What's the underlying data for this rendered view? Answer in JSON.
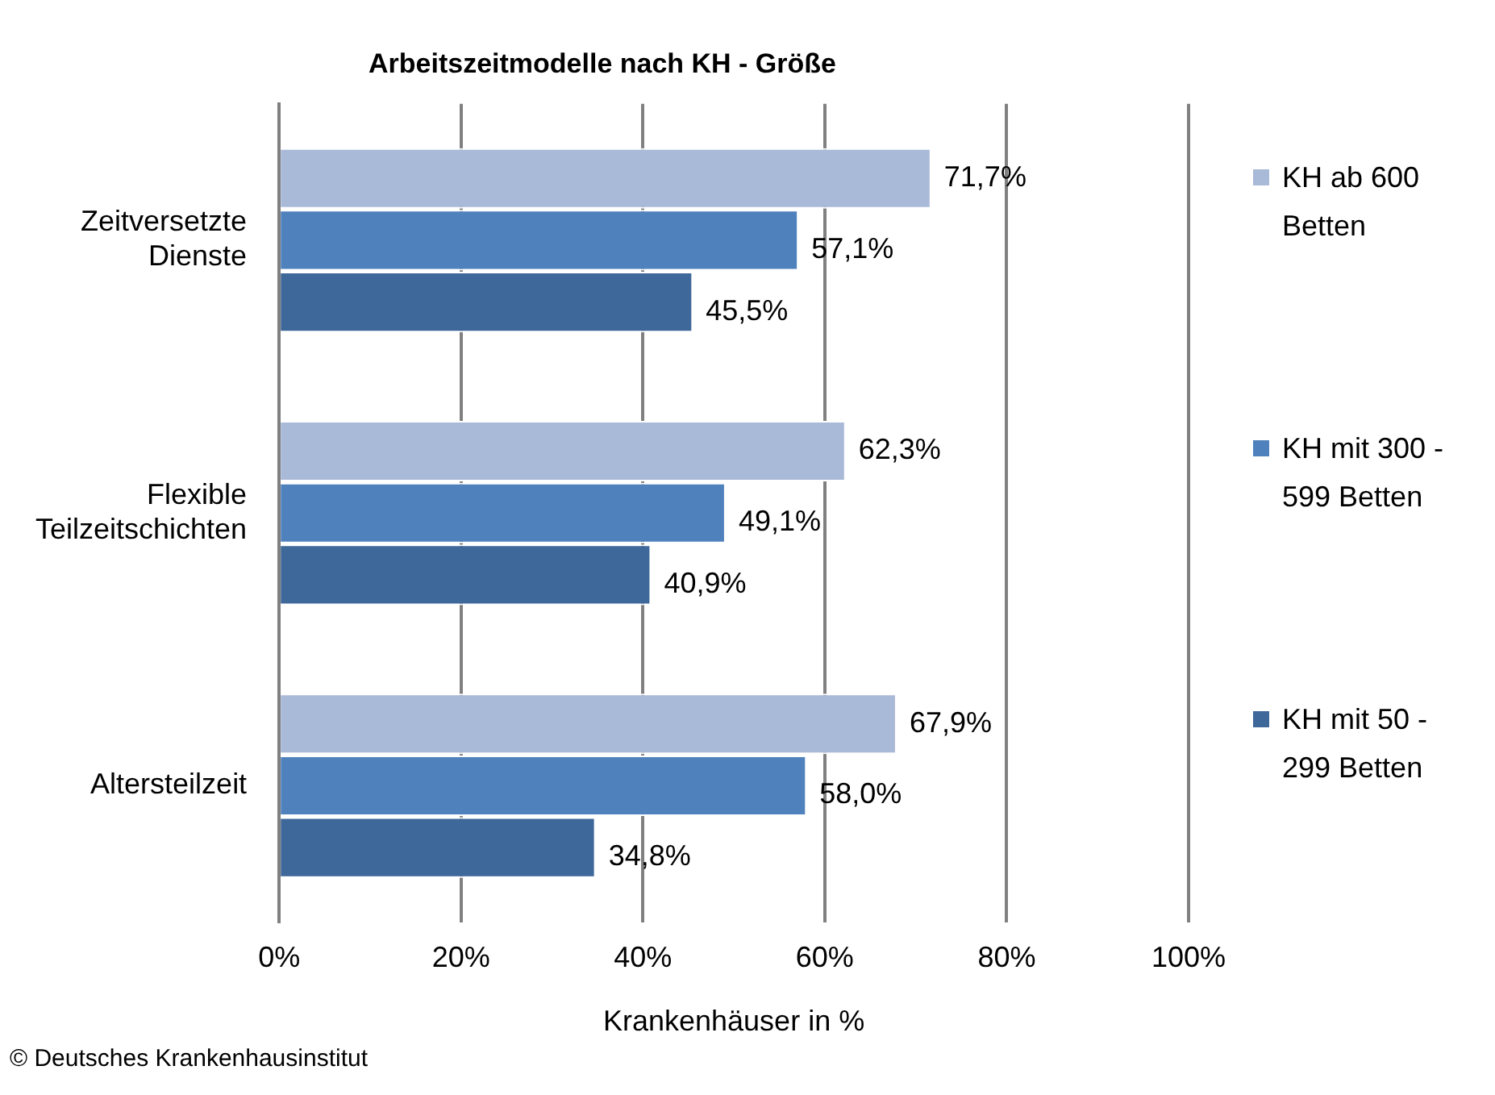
{
  "chart_data": {
    "type": "bar",
    "orientation": "horizontal",
    "title": "Arbeitszeitmodelle nach KH - Größe",
    "xlabel": "Krankenhäuser in %",
    "annotations": [
      "© Deutsches Krankenhausinstitut"
    ],
    "categories": [
      "Zeitversetzte Dienste",
      "Flexible Teilzeitschichten",
      "Altersteilzeit"
    ],
    "series": [
      {
        "name": "KH ab 600 Betten",
        "color": "#a9b9d8",
        "values": [
          71.7,
          62.3,
          67.9
        ],
        "value_labels": [
          "71,7%",
          "62,3%",
          "67,9%"
        ]
      },
      {
        "name": "KH mit 300 - 599 Betten",
        "color": "#4f81bd",
        "values": [
          57.1,
          49.1,
          58.0
        ],
        "value_labels": [
          "57,1%",
          "49,1%",
          "58,0%"
        ]
      },
      {
        "name": "KH mit 50 - 299 Betten",
        "color": "#3e679a",
        "values": [
          45.5,
          40.9,
          34.8
        ],
        "value_labels": [
          "45,5%",
          "40,9%",
          "34,8%"
        ]
      }
    ],
    "xlim": [
      0,
      100
    ],
    "xticks": [
      {
        "value": 0,
        "label": "0%"
      },
      {
        "value": 20,
        "label": "20%"
      },
      {
        "value": 40,
        "label": "40%"
      },
      {
        "value": 60,
        "label": "60%"
      },
      {
        "value": 80,
        "label": "80%"
      },
      {
        "value": 100,
        "label": "100%"
      }
    ],
    "grid": "x",
    "legend": "right"
  }
}
